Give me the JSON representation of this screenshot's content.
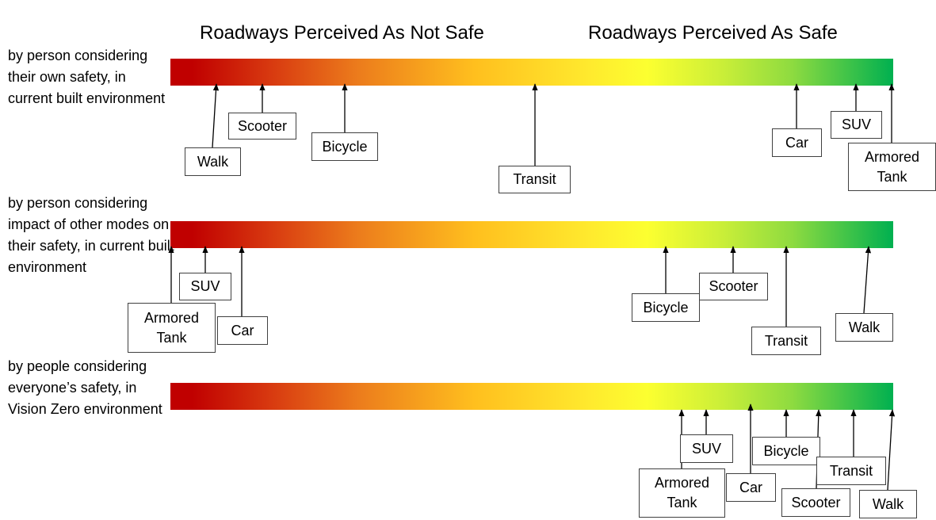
{
  "headers": {
    "not_safe": "Roadways Perceived As Not Safe",
    "safe": "Roadways Perceived As Safe"
  },
  "colors": {
    "not_safe": "#c00000",
    "neutral": "#ffff33",
    "safe": "#00b050",
    "arrow": "#000000"
  },
  "rows": [
    {
      "label": "by person considering their own safety, in current built environment",
      "modes": [
        {
          "name": "Walk"
        },
        {
          "name": "Scooter"
        },
        {
          "name": "Bicycle"
        },
        {
          "name": "Transit"
        },
        {
          "name": "Car"
        },
        {
          "name": "SUV"
        },
        {
          "name": "Armored Tank"
        }
      ]
    },
    {
      "label": "by person considering impact of other modes on their safety, in current built environment",
      "modes": [
        {
          "name": "Armored Tank"
        },
        {
          "name": "SUV"
        },
        {
          "name": "Car"
        },
        {
          "name": "Bicycle"
        },
        {
          "name": "Scooter"
        },
        {
          "name": "Transit"
        },
        {
          "name": "Walk"
        }
      ]
    },
    {
      "label": "by people considering everyone’s safety, in Vision Zero environment",
      "modes": [
        {
          "name": "Armored Tank"
        },
        {
          "name": "SUV"
        },
        {
          "name": "Car"
        },
        {
          "name": "Bicycle"
        },
        {
          "name": "Scooter"
        },
        {
          "name": "Transit"
        },
        {
          "name": "Walk"
        }
      ]
    }
  ]
}
